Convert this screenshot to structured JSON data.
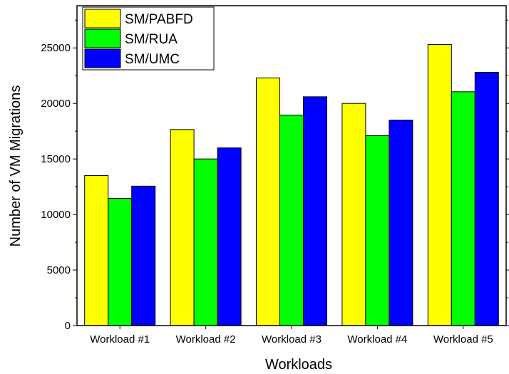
{
  "chart_data": {
    "type": "bar",
    "categories": [
      "Workload #1",
      "Workload #2",
      "Workload #3",
      "Workload #4",
      "Workload #5"
    ],
    "series": [
      {
        "name": "SM/PABFD",
        "color": "#FFFF00",
        "values": [
          13500,
          17650,
          22300,
          20000,
          25300
        ]
      },
      {
        "name": "SM/RUA",
        "color": "#00FF00",
        "values": [
          11450,
          15000,
          18950,
          17100,
          21050
        ]
      },
      {
        "name": "SM/UMC",
        "color": "#0000FF",
        "values": [
          12550,
          16000,
          20600,
          18500,
          22800
        ]
      }
    ],
    "xlabel": "Workloads",
    "ylabel": "Number of VM Migrations",
    "ylim": [
      0,
      28800
    ],
    "yticks": [
      0,
      5000,
      10000,
      15000,
      20000,
      25000
    ],
    "ytick_labels": [
      "0",
      "5000",
      "10000",
      "15000",
      "20000",
      "25000"
    ],
    "legend_position": "top-left",
    "grid": false
  }
}
